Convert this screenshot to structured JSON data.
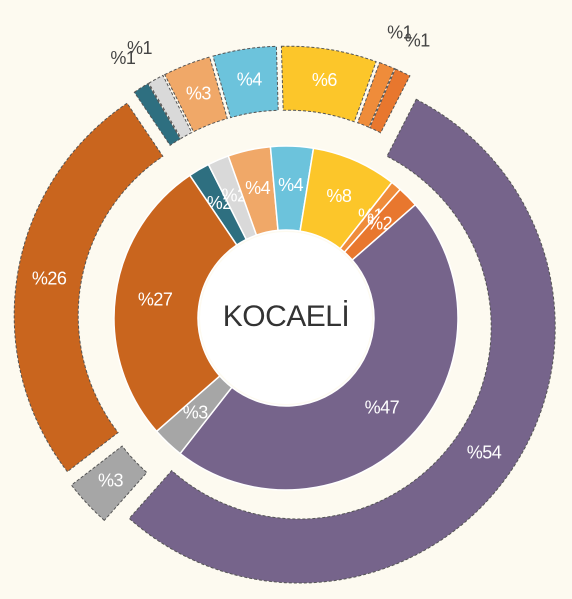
{
  "chart_data": {
    "type": "donut",
    "title": "KOCAELİ",
    "series": [
      {
        "colors": [
          "#2e6f80",
          "#d9d9d9",
          "#f0a868",
          "#6cc3dc",
          "#fcc62a",
          "#ef8c3a",
          "#e8772e",
          "#76648b",
          "#a6a6a6",
          "#c9651e"
        ],
        "values": [
          2,
          2,
          4,
          4,
          8,
          1,
          2,
          47,
          3,
          27
        ],
        "value_labels": [
          "%2",
          "%2",
          "%4",
          "%4",
          "%8",
          "%1",
          "%2",
          "%47",
          "%3",
          "%27"
        ]
      },
      {
        "colors": [
          "#2e6f80",
          "#d9d9d9",
          "#f0a868",
          "#6cc3dc",
          "#fcc62a",
          "#ef8c3a",
          "#e8772e",
          "#76648b",
          "#a6a6a6",
          "#c9651e"
        ],
        "values": [
          1,
          1,
          3,
          4,
          6,
          1,
          1,
          54,
          3,
          26
        ],
        "value_labels": [
          "%1",
          "%1",
          "%3",
          "%4",
          "%6",
          "%1",
          "%1",
          "%54",
          "%3",
          "%26"
        ]
      }
    ]
  }
}
